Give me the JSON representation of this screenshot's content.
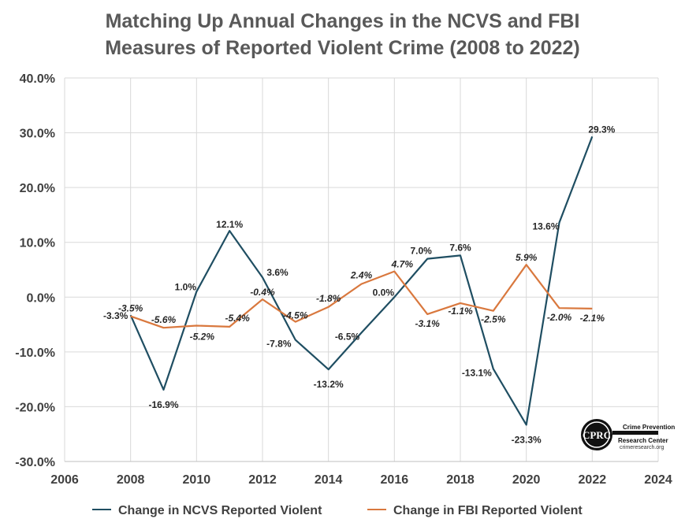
{
  "chart_data": {
    "type": "line",
    "title": "Matching Up Annual Changes in the NCVS and FBI\nMeasures of Reported Violent Crime (2008 to 2022)",
    "xlim": [
      2006,
      2024
    ],
    "ylim": [
      -30,
      40
    ],
    "x_ticks": [
      "2006",
      "2008",
      "2010",
      "2012",
      "2014",
      "2016",
      "2018",
      "2020",
      "2022",
      "2024"
    ],
    "y_ticks": [
      "40.0%",
      "30.0%",
      "20.0%",
      "10.0%",
      "0.0%",
      "-10.0%",
      "-20.0%",
      "-30.0%"
    ],
    "grid": true,
    "legend_position": "bottom",
    "x": [
      2008,
      2009,
      2010,
      2011,
      2012,
      2013,
      2014,
      2015,
      2016,
      2017,
      2018,
      2019,
      2020,
      2021,
      2022
    ],
    "series": [
      {
        "name": "Change in NCVS Reported Violent",
        "color": "#1F4E62",
        "values": [
          -3.3,
          -16.9,
          1.0,
          12.1,
          3.6,
          -7.8,
          -13.2,
          -6.5,
          0.0,
          7.0,
          7.6,
          -13.1,
          -23.3,
          13.6,
          29.3
        ],
        "labels": [
          "-3.3%",
          "-16.9%",
          "1.0%",
          "12.1%",
          "3.6%",
          "-7.8%",
          "-13.2%",
          "-6.5%",
          "0.0%",
          "7.0%",
          "7.6%",
          "-13.1%",
          "-23.3%",
          "13.6%",
          "29.3%"
        ]
      },
      {
        "name": "Change in FBI Reported Violent",
        "color": "#D9783E",
        "values": [
          -3.5,
          -5.6,
          -5.2,
          -5.4,
          -0.4,
          -4.5,
          -1.8,
          2.4,
          4.7,
          -3.1,
          -1.1,
          -2.5,
          5.9,
          -2.0,
          -2.1
        ],
        "labels": [
          "-3.5%",
          "-5.6%",
          "-5.2%",
          "-5.4%",
          "-0.4%",
          "-4.5%",
          "-1.8%",
          "2.4%",
          "4.7%",
          "-3.1%",
          "-1.1%",
          "-2.5%",
          "5.9%",
          "-2.0%",
          "-2.1%"
        ]
      }
    ]
  },
  "logo": {
    "initials": "CPRC",
    "line1": "Crime Prevention",
    "line2": "Research Center",
    "url": "crimeresearch.org"
  }
}
